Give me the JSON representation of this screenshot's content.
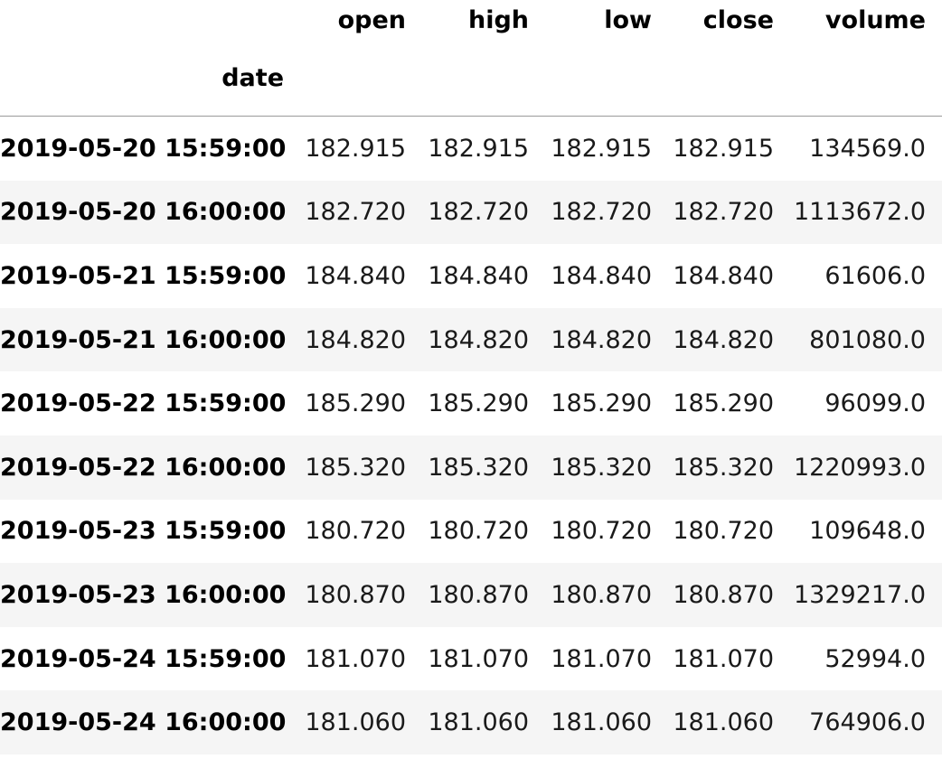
{
  "table": {
    "columns": [
      "open",
      "high",
      "low",
      "close",
      "volume"
    ],
    "index_name": "date",
    "rows": [
      {
        "date": "2019-05-20 15:59:00",
        "values": [
          "182.915",
          "182.915",
          "182.915",
          "182.915",
          "134569.0"
        ]
      },
      {
        "date": "2019-05-20 16:00:00",
        "values": [
          "182.720",
          "182.720",
          "182.720",
          "182.720",
          "1113672.0"
        ]
      },
      {
        "date": "2019-05-21 15:59:00",
        "values": [
          "184.840",
          "184.840",
          "184.840",
          "184.840",
          "61606.0"
        ]
      },
      {
        "date": "2019-05-21 16:00:00",
        "values": [
          "184.820",
          "184.820",
          "184.820",
          "184.820",
          "801080.0"
        ]
      },
      {
        "date": "2019-05-22 15:59:00",
        "values": [
          "185.290",
          "185.290",
          "185.290",
          "185.290",
          "96099.0"
        ]
      },
      {
        "date": "2019-05-22 16:00:00",
        "values": [
          "185.320",
          "185.320",
          "185.320",
          "185.320",
          "1220993.0"
        ]
      },
      {
        "date": "2019-05-23 15:59:00",
        "values": [
          "180.720",
          "180.720",
          "180.720",
          "180.720",
          "109648.0"
        ]
      },
      {
        "date": "2019-05-23 16:00:00",
        "values": [
          "180.870",
          "180.870",
          "180.870",
          "180.870",
          "1329217.0"
        ]
      },
      {
        "date": "2019-05-24 15:59:00",
        "values": [
          "181.070",
          "181.070",
          "181.070",
          "181.070",
          "52994.0"
        ]
      },
      {
        "date": "2019-05-24 16:00:00",
        "values": [
          "181.060",
          "181.060",
          "181.060",
          "181.060",
          "764906.0"
        ]
      }
    ]
  }
}
